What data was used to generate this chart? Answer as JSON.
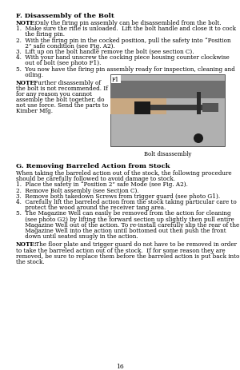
{
  "page_number": "16",
  "background_color": "#ffffff",
  "figsize": [
    3.0,
    4.64
  ],
  "dpi": 100,
  "section_f_title": "F. Disassembly of the Bolt",
  "section_f_items": [
    "1.  Make sure the rifle is unloaded.  Lift the bolt handle and close it to cock\n     the firing pin.",
    "2.  With the firing pin in the cocked position, pull the safety into “Position\n     2” safe condition (see Fig. A2).",
    "3.  Lift up on the bolt handle remove the bolt (see section C).",
    "4.  With your hand unscrew the cocking piece housing counter clockwise\n     out of bolt (see photo F1).",
    "5.  You now have the firing pin assembly ready for inspection, cleaning and\n     oiling."
  ],
  "note_box_text_lines": [
    "NOTE: Further disassembly of",
    "the bolt is not recommended. If",
    "for any reason you cannot",
    "assemble the bolt together, do",
    "not use force. Send the parts to",
    "Kimber Mfg."
  ],
  "image_label": "F1",
  "image_caption": "Bolt disassembly",
  "section_g_title": "G. Removing Barreled Action from Stock",
  "section_g_intro_lines": [
    "When taking the barreled action out of the stock, the following procedure",
    "should be carefully followed to avoid damage to stock."
  ],
  "section_g_items": [
    "1.  Place the safety in “Position 2” safe Mode (see Fig. A2).",
    "2.  Remove Bolt assembly (see Section C).",
    "3.  Remove both takedown Screws from trigger guard (see photo G1).",
    "4.  Carefully lift the barreled action from the stock taking particular care to\n     protect the wood around the receiver tang area.",
    "5.  The Magazine Well can easily be removed from the action for cleaning\n     (see photo G2) by lifting the forward section up slightly then pull entire\n     Magazine Well out of the action. To re-install carefully slip the rear of the\n     Magazine Well into the action until bottomed out then push the front\n     down until seated snugly in the action."
  ],
  "section_g_note_lines": [
    "NOTE: The floor plate and trigger guard do not have to be removed in order",
    "to take the barreled action out of the stock.  If for some reason they are",
    "removed, be sure to replace them before the barreled action is put back into",
    "the stock."
  ]
}
